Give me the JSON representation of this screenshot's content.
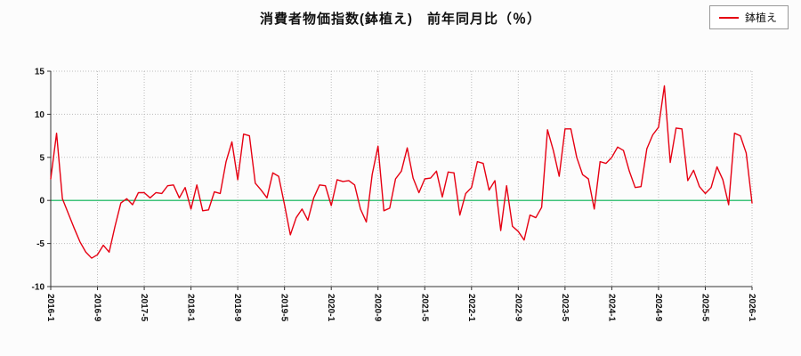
{
  "title": "消費者物価指数(鉢植え)　前年同月比（％）",
  "legend": {
    "label": "鉢植え",
    "line_color": "#e60012"
  },
  "chart_data": {
    "type": "line",
    "series_name": "鉢植え",
    "x_frequency": "monthly",
    "x_start": "2016-1",
    "x_end": "2026-1",
    "x_tick_labels": [
      "2016-1",
      "2016-9",
      "2017-5",
      "2018-1",
      "2018-9",
      "2019-5",
      "2020-1",
      "2020-9",
      "2021-5",
      "2022-1",
      "2022-9",
      "2023-5",
      "2024-1",
      "2024-9",
      "2025-5",
      "2026-1"
    ],
    "x_tick_step_months": 8,
    "y_ticks": [
      -10,
      -5,
      0,
      5,
      10,
      15
    ],
    "ylim": [
      -10,
      15
    ],
    "ylabel": "",
    "xlabel": "",
    "grid": "dotted",
    "legend_position": "top-right",
    "line_color": "#e60012",
    "zero_line_color": "#00b050",
    "grid_color": "#bbbbbb",
    "axis_color": "#333333",
    "values": [
      2.5,
      7.8,
      0.2,
      -1.5,
      -3.2,
      -4.8,
      -6.0,
      -6.7,
      -6.3,
      -5.2,
      -6.0,
      -3.0,
      -0.3,
      0.2,
      -0.5,
      0.9,
      0.9,
      0.3,
      0.9,
      0.8,
      1.7,
      1.8,
      0.3,
      1.5,
      -1.0,
      1.8,
      -1.2,
      -1.1,
      1.0,
      0.8,
      4.5,
      6.8,
      2.4,
      7.7,
      7.5,
      2.0,
      1.2,
      0.3,
      3.2,
      2.8,
      -0.5,
      -4.0,
      -2.0,
      -1.0,
      -2.3,
      0.3,
      1.8,
      1.7,
      -0.6,
      2.4,
      2.2,
      2.3,
      1.8,
      -1.0,
      -2.5,
      3.0,
      6.3,
      -1.2,
      -0.9,
      2.5,
      3.4,
      6.1,
      2.6,
      0.9,
      2.5,
      2.6,
      3.4,
      0.4,
      3.3,
      3.2,
      -1.7,
      0.8,
      1.5,
      4.5,
      4.3,
      1.2,
      2.3,
      -3.5,
      1.7,
      -3.0,
      -3.6,
      -4.6,
      -1.7,
      -2.0,
      -0.8,
      8.2,
      5.8,
      2.8,
      8.3,
      8.3,
      5.0,
      3.0,
      2.5,
      -1.0,
      4.5,
      4.3,
      5.0,
      6.2,
      5.8,
      3.4,
      1.5,
      1.6,
      6.0,
      7.6,
      8.5,
      13.3,
      4.4,
      8.4,
      8.3,
      2.3,
      3.5,
      1.6,
      0.8,
      1.5,
      3.9,
      2.4,
      -0.5,
      7.8,
      7.5,
      5.5,
      -0.3
    ]
  }
}
